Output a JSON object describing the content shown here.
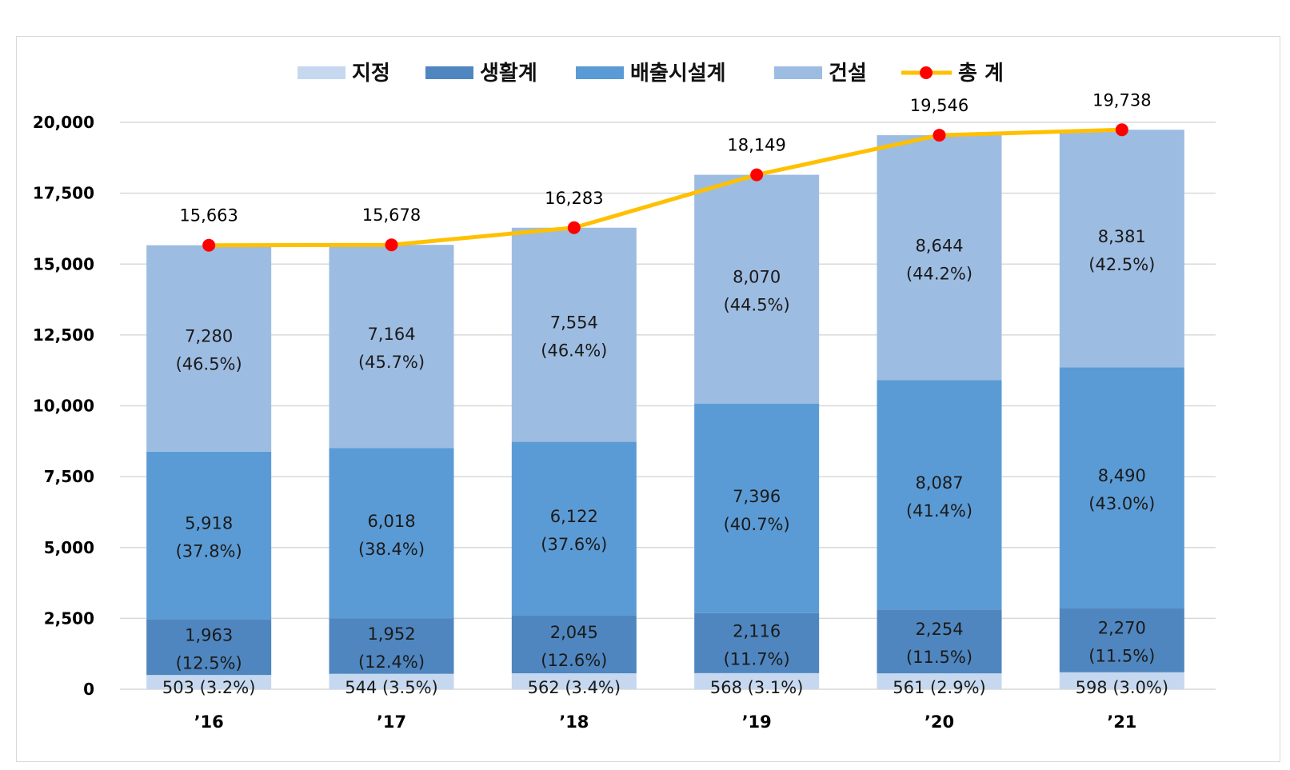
{
  "chart_data": {
    "type": "bar",
    "stacked": true,
    "categories": [
      "’16",
      "’17",
      "’18",
      "’19",
      "’20",
      "’21"
    ],
    "series": [
      {
        "name": "지정",
        "color": "#c5d8ef",
        "values": [
          503,
          544,
          562,
          568,
          561,
          598
        ],
        "labels": [
          "503 (3.2%)",
          "544 (3.5%)",
          "562 (3.4%)",
          "568 (3.1%)",
          "561 (2.9%)",
          "598 (3.0%)"
        ]
      },
      {
        "name": "생활계",
        "color": "#4f86bf",
        "values": [
          1963,
          1952,
          2045,
          2116,
          2254,
          2270
        ],
        "labels": [
          [
            "1,963",
            "(12.5%)"
          ],
          [
            "1,952",
            "(12.4%)"
          ],
          [
            "2,045",
            "(12.6%)"
          ],
          [
            "2,116",
            "(11.7%)"
          ],
          [
            "2,254",
            "(11.5%)"
          ],
          [
            "2,270",
            "(11.5%)"
          ]
        ]
      },
      {
        "name": "배출시설계",
        "color": "#5b9bd5",
        "values": [
          5918,
          6018,
          6122,
          7396,
          8087,
          8490
        ],
        "labels": [
          [
            "5,918",
            "(37.8%)"
          ],
          [
            "6,018",
            "(38.4%)"
          ],
          [
            "6,122",
            "(37.6%)"
          ],
          [
            "7,396",
            "(40.7%)"
          ],
          [
            "8,087",
            "(41.4%)"
          ],
          [
            "8,490",
            "(43.0%)"
          ]
        ]
      },
      {
        "name": "건설",
        "color": "#9dbce2",
        "values": [
          7280,
          7164,
          7554,
          8070,
          8644,
          8381
        ],
        "labels": [
          [
            "7,280",
            "(46.5%)"
          ],
          [
            "7,164",
            "(45.7%)"
          ],
          [
            "7,554",
            "(46.4%)"
          ],
          [
            "8,070",
            "(44.5%)"
          ],
          [
            "8,644",
            "(44.2%)"
          ],
          [
            "8,381",
            "(42.5%)"
          ]
        ]
      }
    ],
    "total": {
      "name": "총 계",
      "type": "line",
      "line_color": "#ffc000",
      "marker_color": "#ff0000",
      "values": [
        15663,
        15678,
        16283,
        18149,
        19546,
        19738
      ],
      "labels": [
        "15,663",
        "15,678",
        "16,283",
        "18,149",
        "19,546",
        "19,738"
      ]
    },
    "y_ticks": [
      "0",
      "2,500",
      "5,000",
      "7,500",
      "10,000",
      "12,500",
      "15,000",
      "17,500",
      "20,000"
    ],
    "ylim": [
      0,
      20000
    ],
    "grid": true,
    "legend_position": "top"
  }
}
